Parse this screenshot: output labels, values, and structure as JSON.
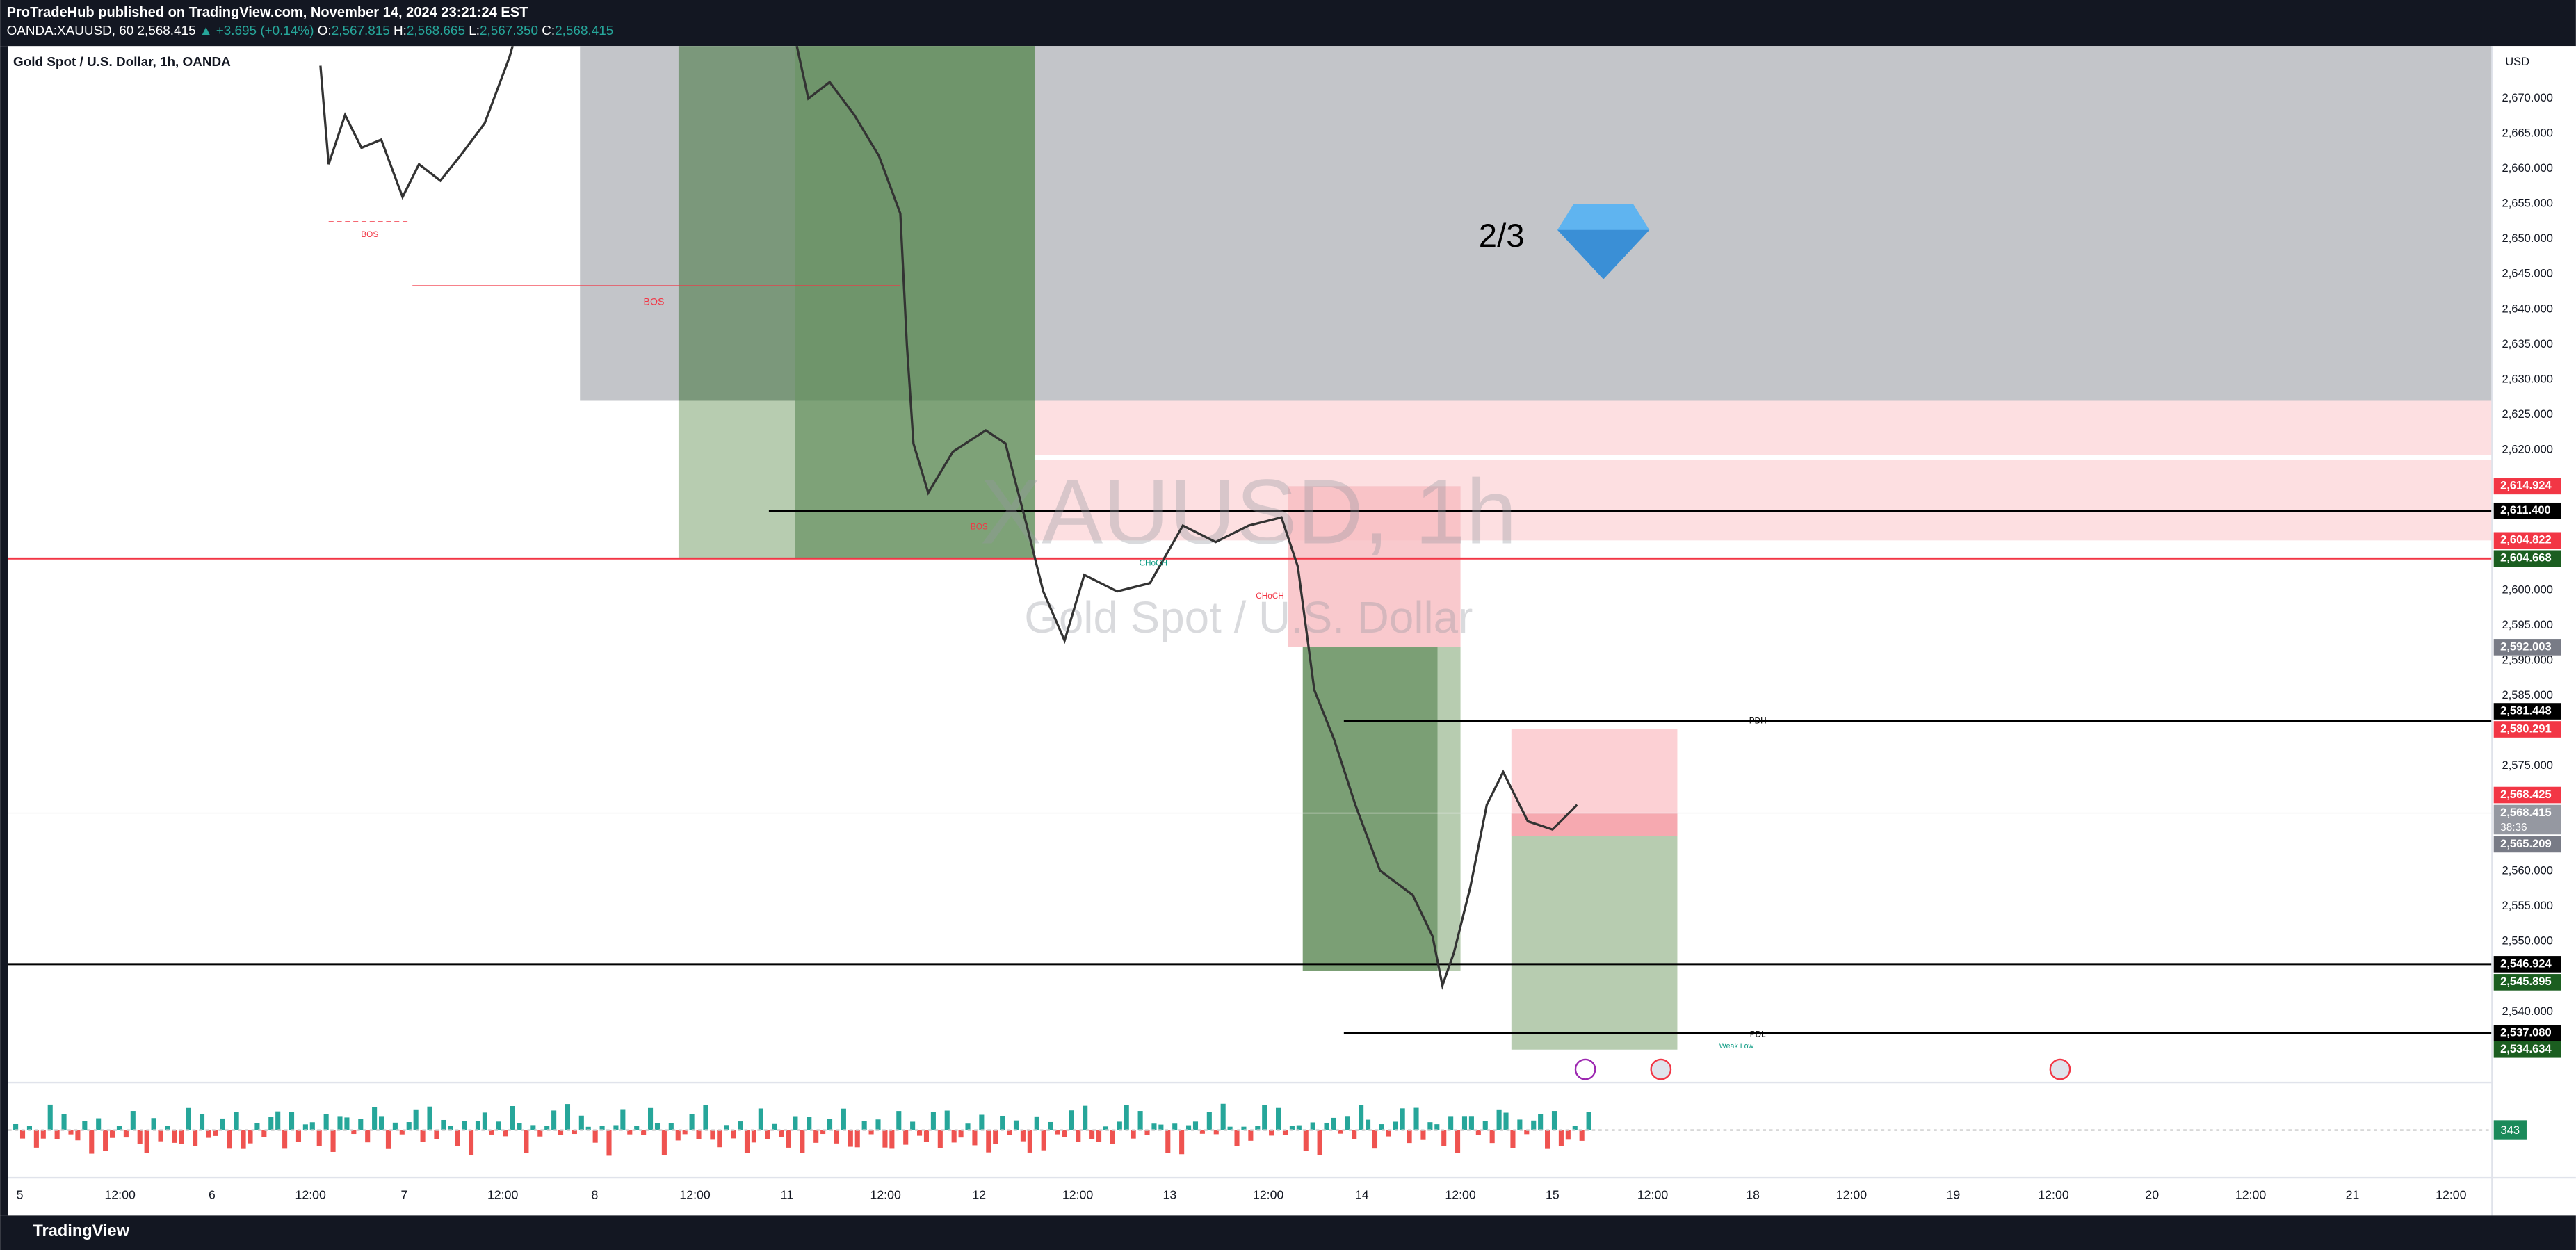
{
  "header": {
    "published": "ProTradeHub published on TradingView.com, November 14, 2024 23:21:24 EST",
    "symbol": "OANDA:XAUUSD, 60",
    "price": "2,568.415",
    "change": "▲ +3.695 (+0.14%)",
    "o_label": "O:",
    "o": "2,567.815",
    "h_label": "H:",
    "h": "2,568.665",
    "l_label": "L:",
    "l": "2,567.350",
    "c_label": "C:",
    "c": "2,568.415"
  },
  "legend": "Gold Spot / U.S. Dollar, 1h, OANDA",
  "currency": "USD",
  "watermark": {
    "symbol": "XAUUSD, 1h",
    "name": "Gold Spot / U.S. Dollar"
  },
  "annotation": "2/3",
  "price_axis": [
    "2,670.000",
    "2,665.000",
    "2,660.000",
    "2,655.000",
    "2,650.000",
    "2,645.000",
    "2,640.000",
    "2,635.000",
    "2,630.000",
    "2,625.000",
    "2,620.000",
    "2,600.000",
    "2,595.000",
    "2,590.000",
    "2,585.000",
    "2,575.000",
    "2,560.000",
    "2,555.000",
    "2,550.000",
    "2,540.000"
  ],
  "price_tags": [
    {
      "text": "2,614.924",
      "color": "#f23645"
    },
    {
      "text": "2,611.400",
      "color": "#000000"
    },
    {
      "text": "2,604.822",
      "color": "#f23645"
    },
    {
      "text": "2,604.668",
      "color": "#1b5e20"
    },
    {
      "text": "2,592.003",
      "color": "#787b86"
    },
    {
      "text": "2,581.448",
      "color": "#000000"
    },
    {
      "text": "2,580.291",
      "color": "#f23645"
    },
    {
      "text": "2,568.425",
      "color": "#f23645"
    },
    {
      "text": "2,568.415",
      "color": "#9598a1"
    },
    {
      "text": "2,565.209",
      "color": "#787b86"
    },
    {
      "text": "2,546.924",
      "color": "#000000"
    },
    {
      "text": "2,545.895",
      "color": "#1b5e20"
    },
    {
      "text": "2,537.080",
      "color": "#000000"
    },
    {
      "text": "2,534.634",
      "color": "#1b5e20"
    }
  ],
  "countdown": "38:36",
  "time_axis": [
    "5",
    "12:00",
    "6",
    "12:00",
    "7",
    "12:00",
    "8",
    "12:00",
    "11",
    "12:00",
    "12",
    "12:00",
    "13",
    "12:00",
    "14",
    "12:00",
    "15",
    "12:00",
    "18",
    "12:00",
    "19",
    "12:00",
    "20",
    "12:00",
    "21",
    "12:00"
  ],
  "labels": {
    "bos_1": "BOS",
    "bos_2": "BOS",
    "bos_3": "BOS",
    "choch_1": "CHoCH",
    "choch_2": "CHoCH",
    "pdh": "PDH",
    "pdl": "PDL",
    "weak_low": "Weak Low"
  },
  "volume": "343",
  "footer": "TradingView"
}
